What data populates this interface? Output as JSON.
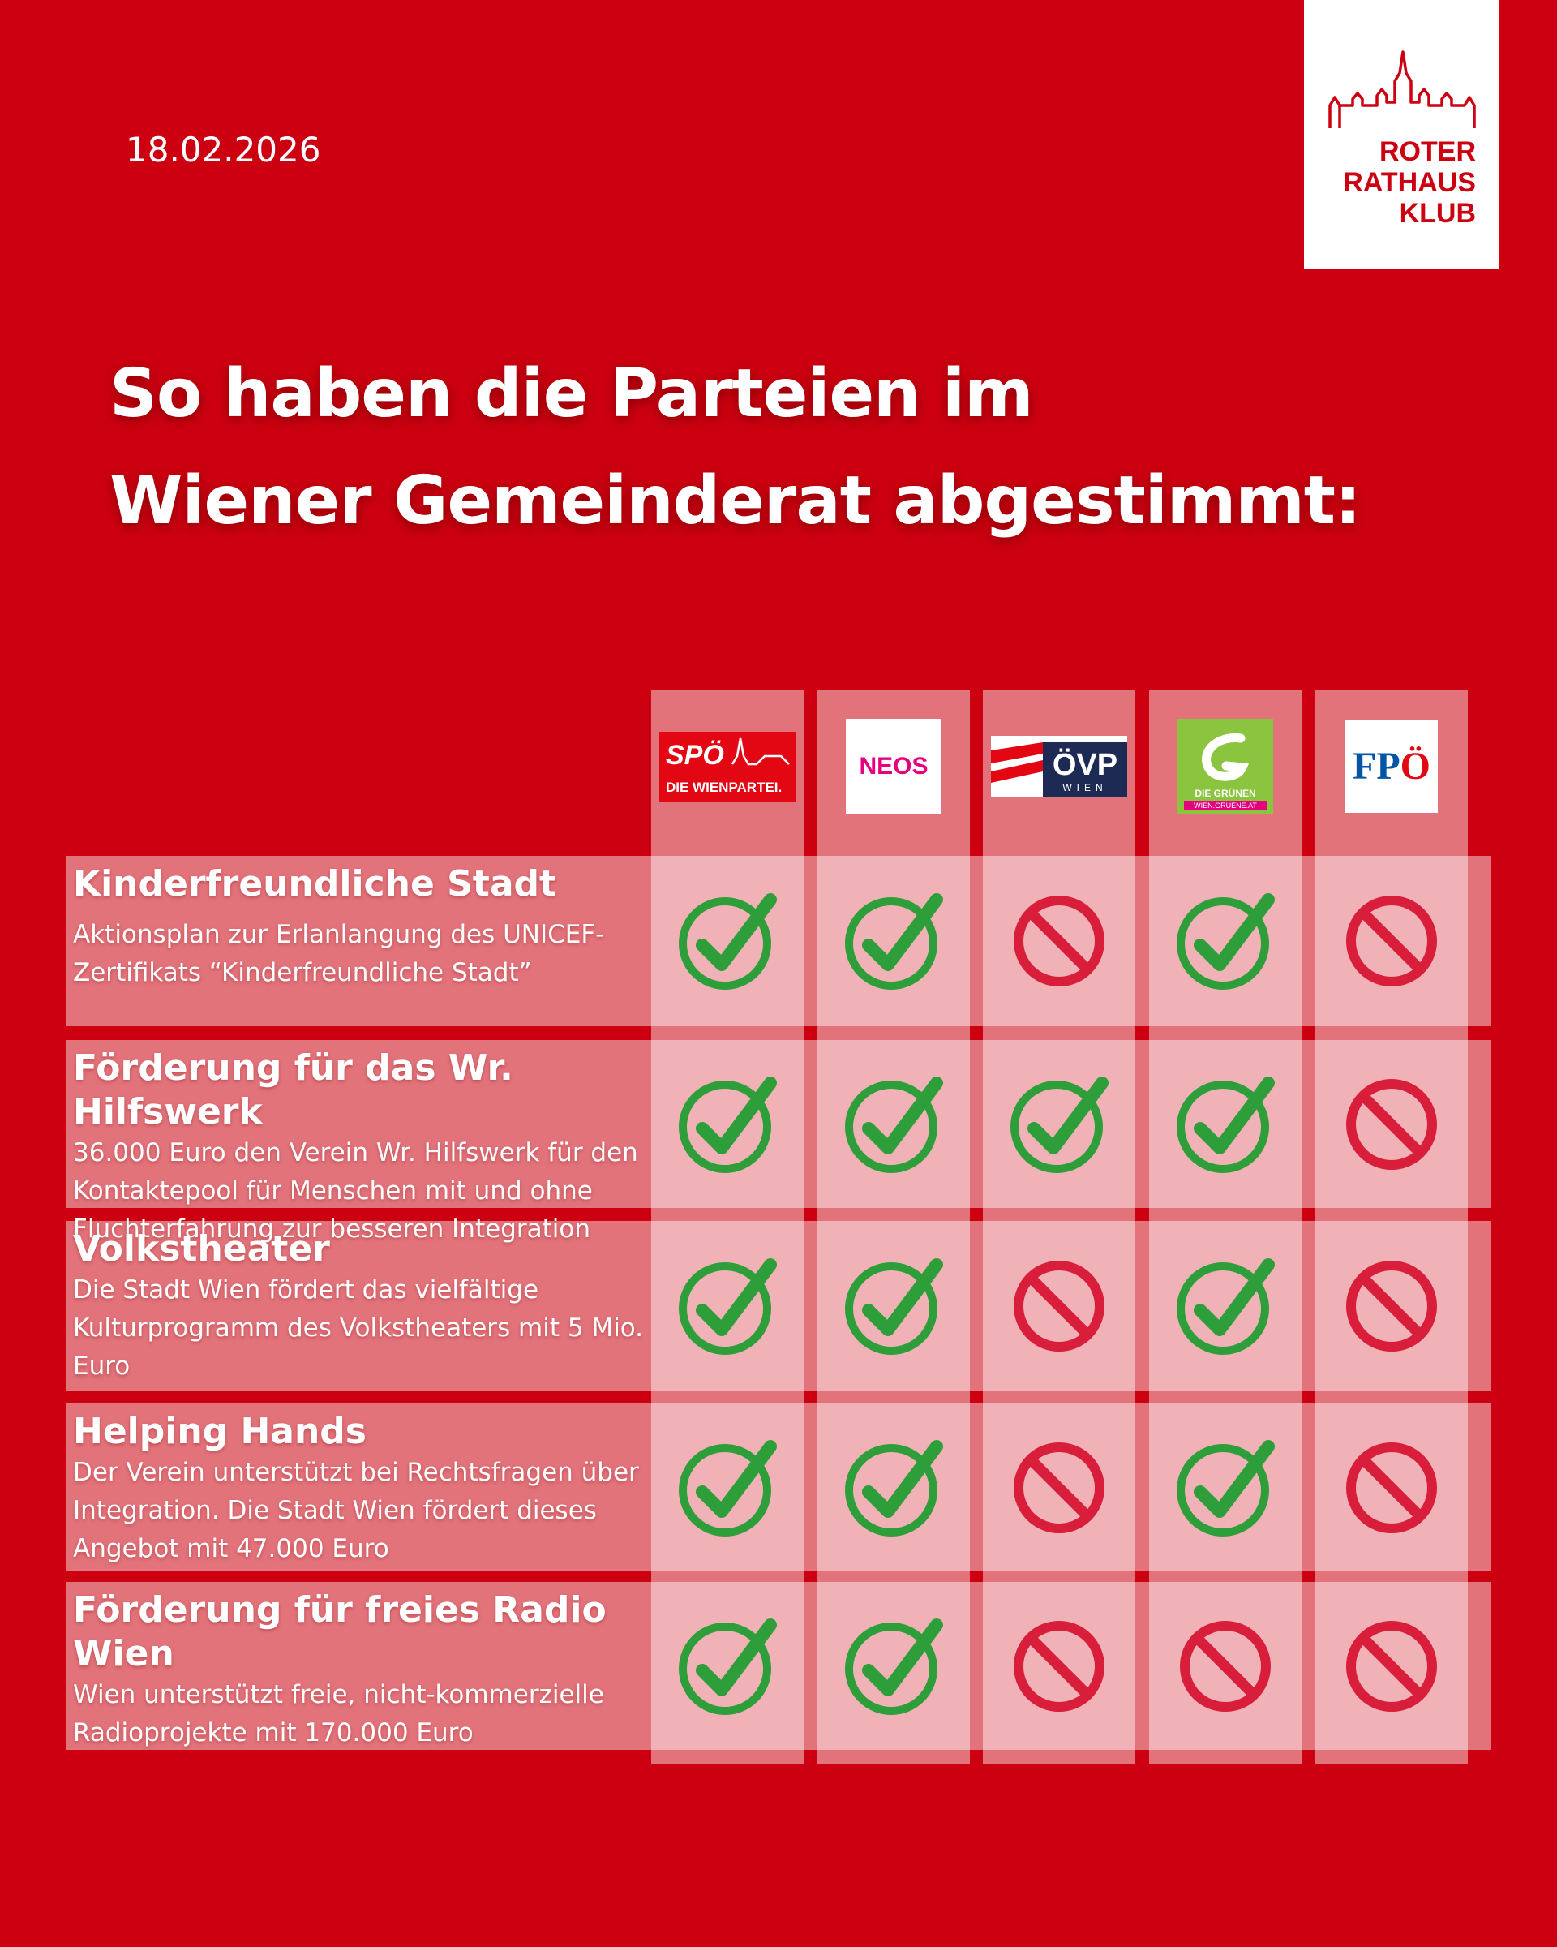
{
  "date": "18.02.2026",
  "brand": {
    "line1": "ROTER",
    "line2": "RATHAUS",
    "line3": "KLUB"
  },
  "headline": {
    "line1": "So haben die Parteien im",
    "line2": "Wiener Gemeinderat abgestimmt:"
  },
  "parties": [
    {
      "name": "SPÖ",
      "sub": "DIE WIENPARTEI.",
      "logo": "spoe-logo"
    },
    {
      "name": "NEOS",
      "logo": "neos-logo"
    },
    {
      "name": "ÖVP",
      "sub": "WIEN",
      "logo": "oevp-logo"
    },
    {
      "name": "DIE GRÜNEN",
      "sub": "WIEN.GRUENE.AT",
      "logo": "gruene-logo"
    },
    {
      "name": "FPÖ",
      "logo": "fpoe-logo"
    }
  ],
  "rows": [
    {
      "title": "Kinderfreundliche Stadt",
      "description": "Aktionsplan zur Erlanlangung des UNICEF-Zertifikats “Kinderfreundliche Stadt”",
      "votes": [
        "yes",
        "yes",
        "no",
        "yes",
        "no"
      ]
    },
    {
      "title": "Förderung für das Wr. Hilfswerk",
      "description": "36.000 Euro den Verein Wr. Hilfswerk für den Kontaktepool für Menschen mit und ohne Fluchterfahrung zur besseren Integration",
      "votes": [
        "yes",
        "yes",
        "yes",
        "yes",
        "no"
      ]
    },
    {
      "title": "Volkstheater",
      "description": "Die Stadt Wien fördert das vielfältige Kulturprogramm des Volkstheaters mit 5 Mio. Euro",
      "votes": [
        "yes",
        "yes",
        "no",
        "yes",
        "no"
      ]
    },
    {
      "title": "Helping Hands",
      "description": "Der Verein unterstützt bei Rechtsfragen über Integration. Die Stadt Wien fördert dieses Angebot mit 47.000 Euro",
      "votes": [
        "yes",
        "yes",
        "no",
        "yes",
        "no"
      ]
    },
    {
      "title": "Förderung für freies Radio Wien",
      "description": "Wien unterstützt freie, nicht-kommerzielle Radioprojekte mit 170.000 Euro",
      "votes": [
        "yes",
        "yes",
        "no",
        "no",
        "no"
      ]
    }
  ],
  "colors": {
    "background": "#cc0010",
    "yes": "#2e9e3a",
    "no": "#d81e3a"
  },
  "icons": {
    "yes": "check-circle-icon",
    "no": "prohibited-icon"
  }
}
